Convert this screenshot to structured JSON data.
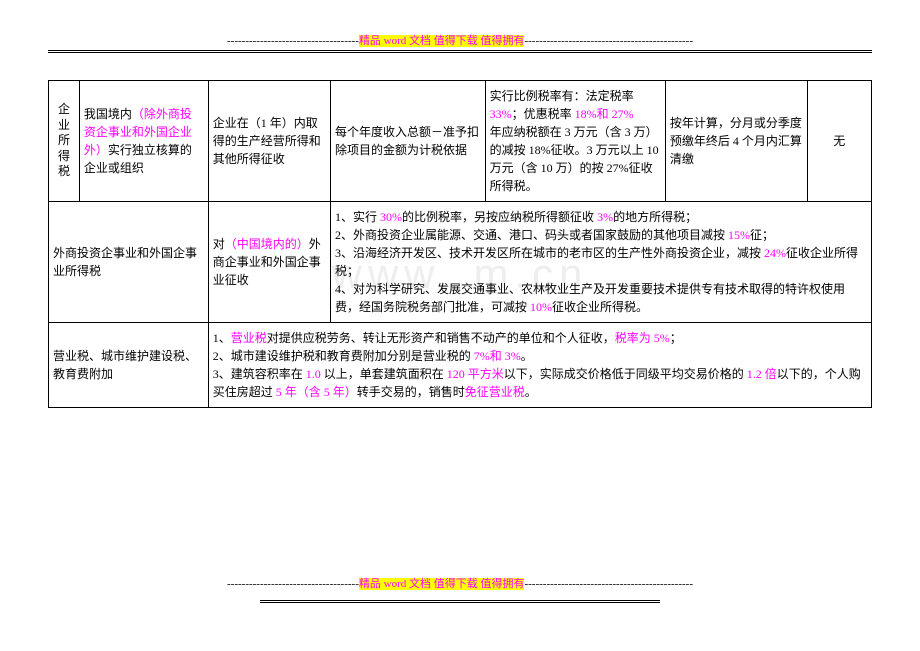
{
  "header": {
    "dashes_left": "------------------------------------",
    "text1": "精品 word 文档  值得下载  值得拥有",
    "dashes_right": "----------------------------------------------"
  },
  "footer": {
    "dashes_left": "------------------------------------",
    "text1": "精品 word 文档  值得下载  值得拥有",
    "dashes_right": "----------------------------------------------"
  },
  "watermark": "www.         m.cn",
  "row1": {
    "c1_a": "企",
    "c1_b": "业",
    "c1_c": "所",
    "c1_d": "得",
    "c1_e": "税",
    "c2_a": "我国境内",
    "c2_b": "（除外商投资企事业和外国企业外）",
    "c2_c": "实行独立核算的企业或组织",
    "c3": "企业在（1 年）内取得的生产经营所得和其他所得征收",
    "c4": "每个年度收入总额－准予扣除项目的金额为计税依据",
    "c5_a": "实行比例税率有：法定税率 ",
    "c5_b": "33%",
    "c5_c": "；优惠税率 ",
    "c5_d": "18%和 27%",
    "c5_e": "    年应纳税额在 3 万元（含 3 万）的减按 18%征收。3 万元以上 10 万元（含 10 万）的按 27%征收所得税。",
    "c6": "按年计算，分月或分季度预缴年终后 4 个月内汇算清缴",
    "c7": "无"
  },
  "row2": {
    "c1": "外商投资企事业和外国企事业所得税",
    "c2_a": "对",
    "c2_b": "（中国境内的）",
    "c2_c": "外商企事业和外国企事业征收",
    "c34567_1a": "1、实行 ",
    "c34567_1b": "30%",
    "c34567_1c": "的比例税率，另按应纳税所得额征收 ",
    "c34567_1d": "3%",
    "c34567_1e": "的地方所得税；",
    "c34567_2a": "2、外商投资企业属能源、交通、港口、码头或者国家鼓励的其他项目减按 ",
    "c34567_2b": "15%",
    "c34567_2c": "征；",
    "c34567_3a": "3、沿海经济开发区、技术开发区所在城市的老市区的生产性外商投资企业，减按 ",
    "c34567_3b": "24%",
    "c34567_3c": "征收企业所得税；",
    "c34567_4a": "4、对为科学研究、发展交通事业、农林牧业生产及开发重要技术提供专有技术取得的特许权使用费，经国务院税务部门批准，可减按 ",
    "c34567_4b": "10%",
    "c34567_4c": "征收企业所得税。"
  },
  "row3": {
    "c1": "营业税、城市维护建设税、教育费附加",
    "c2_1a": "1、",
    "c2_1b": "营业税",
    "c2_1c": "对提供应税劳务、转让无形资产和销售不动产的单位和个人征收，",
    "c2_1d": "税率为 5%",
    "c2_1e": "；",
    "c2_2a": "2、城市建设维护税和教育费附加分别是营业税的 ",
    "c2_2b": "7%和 3%",
    "c2_2c": "。",
    "c2_3a": "3、建筑容积率在 ",
    "c2_3b": "1.0 ",
    "c2_3c": "以上，单套建筑面积在 ",
    "c2_3d": "120 平方米",
    "c2_3e": "以下，实际成交价格低于同级平均交易价格的 ",
    "c2_3f": "1.2 倍",
    "c2_3g": "以下的，个人购买住房超过 ",
    "c2_3h": "5 年（含 5 年）",
    "c2_3i": "转手交易的，销售时",
    "c2_3j": "免征营业税",
    "c2_3k": "。"
  }
}
